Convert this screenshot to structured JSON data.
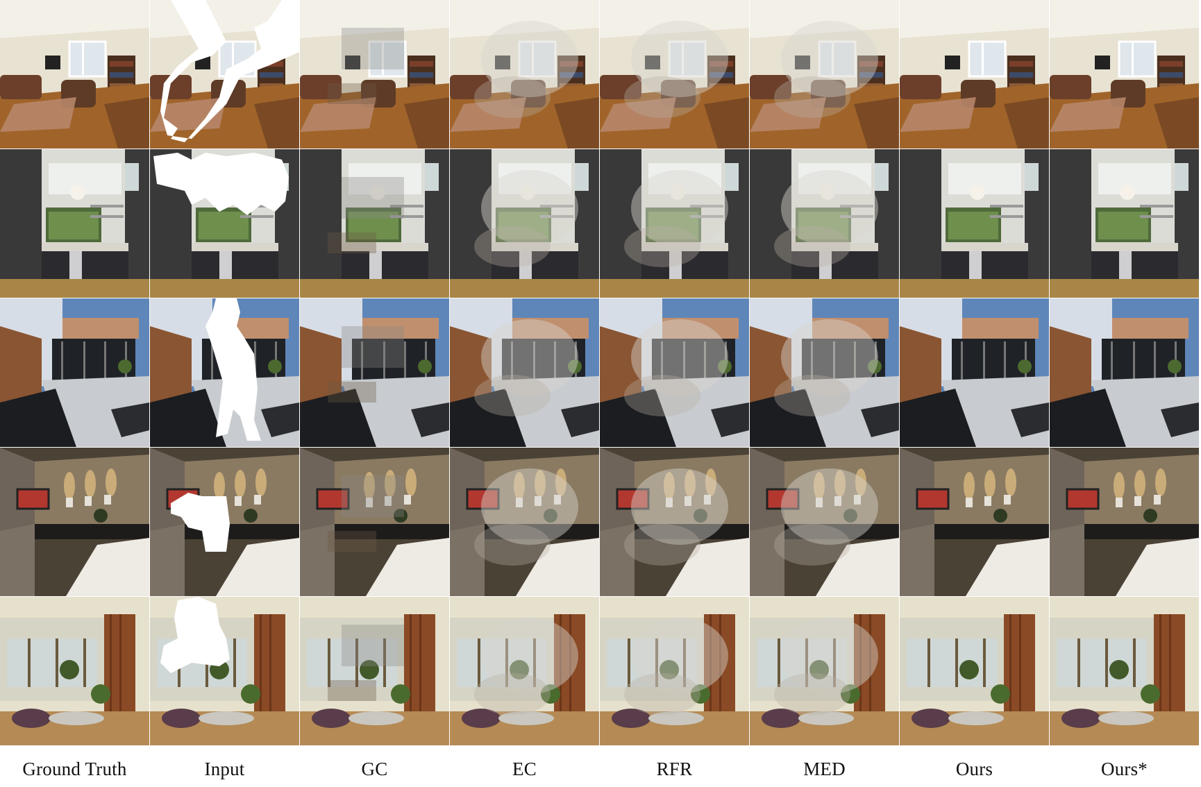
{
  "figure": {
    "columns": [
      "Ground Truth",
      "Input",
      "GC",
      "EC",
      "RFR",
      "MED",
      "Ours",
      "Ours*"
    ],
    "rows": [
      {
        "scene": "living-room",
        "column_kinds": [
          "clean",
          "masked",
          "artifact",
          "blur",
          "blur",
          "blur",
          "clean",
          "clean"
        ]
      },
      {
        "scene": "kitchen",
        "column_kinds": [
          "clean",
          "masked",
          "artifact",
          "blur",
          "blur",
          "blur",
          "clean",
          "clean"
        ]
      },
      {
        "scene": "patio",
        "column_kinds": [
          "clean",
          "masked",
          "artifact",
          "blur",
          "blur",
          "blur",
          "clean",
          "clean"
        ]
      },
      {
        "scene": "bedroom",
        "column_kinds": [
          "clean",
          "masked",
          "artifact",
          "blur",
          "blur",
          "blur",
          "clean",
          "clean"
        ]
      },
      {
        "scene": "lounge",
        "column_kinds": [
          "clean",
          "masked",
          "artifact",
          "blur",
          "blur",
          "blur",
          "clean",
          "clean"
        ]
      }
    ],
    "colors": {
      "mask": "#ffffff",
      "wood_floor": "#a0642a",
      "wall_cream": "#e8e2d2",
      "dark_cabinet": "#2b2a2e",
      "sky": "#5f86b8",
      "brick_panel": "#8a5532",
      "tv_red": "#b2382f"
    }
  }
}
